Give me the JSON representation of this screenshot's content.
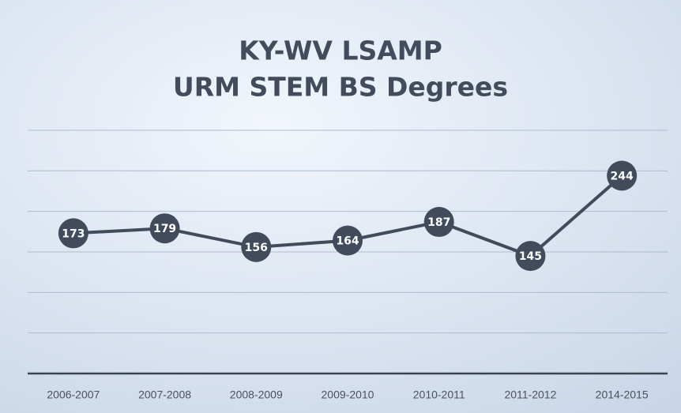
{
  "chart_data": {
    "type": "line",
    "title": "KY-WV LSAMP",
    "subtitle": "URM STEM BS Degrees",
    "categories": [
      "2006-2007",
      "2007-2008",
      "2008-2009",
      "2009-2010",
      "2010-2011",
      "2011-2012",
      "2014-2015"
    ],
    "series": [
      {
        "name": "URM STEM BS Degrees",
        "color": "#414b5c",
        "values": [
          173,
          179,
          156,
          164,
          187,
          145,
          244
        ]
      }
    ],
    "ylim": [
      0,
      300
    ],
    "yticks": [
      0,
      50,
      100,
      150,
      200,
      250,
      300
    ],
    "grid": true
  }
}
